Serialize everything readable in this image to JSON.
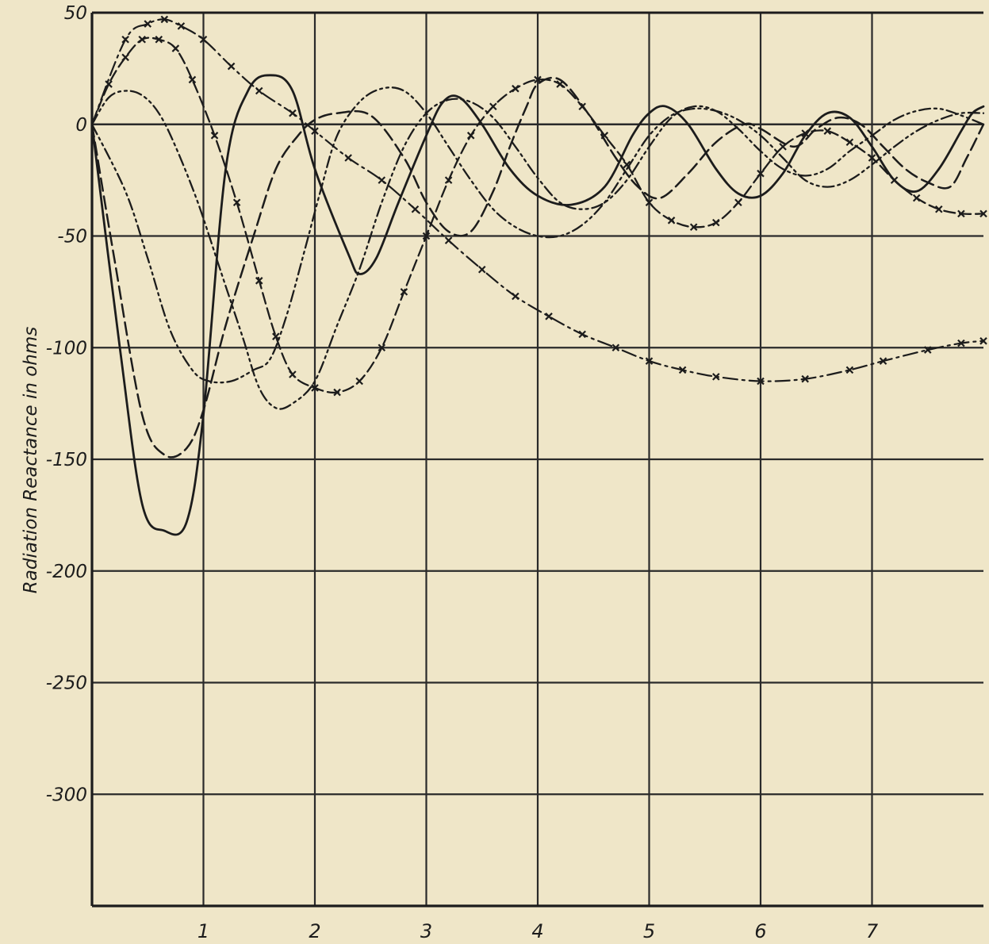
{
  "chart_data": {
    "type": "line",
    "title": "",
    "xlabel": "",
    "ylabel": "Radiation Reactance in ohms",
    "xlim": [
      0,
      8
    ],
    "ylim": [
      -350,
      50
    ],
    "xticks": [
      "1",
      "2",
      "3",
      "4",
      "5",
      "6",
      "7"
    ],
    "yticks": [
      "50",
      "0",
      "-50",
      "-100",
      "-150",
      "-200",
      "-250",
      "-300"
    ],
    "ytick_values": [
      50,
      0,
      -50,
      -100,
      -150,
      -200,
      -250,
      -300
    ],
    "grid": true,
    "legend": "none",
    "series": [
      {
        "style": "solid",
        "points": [
          [
            0,
            0
          ],
          [
            0.25,
            -100
          ],
          [
            0.45,
            -170
          ],
          [
            0.65,
            -182
          ],
          [
            0.85,
            -178
          ],
          [
            1.0,
            -130
          ],
          [
            1.2,
            -20
          ],
          [
            1.4,
            15
          ],
          [
            1.6,
            22
          ],
          [
            1.8,
            15
          ],
          [
            2.0,
            -20
          ],
          [
            2.3,
            -58
          ],
          [
            2.4,
            -67
          ],
          [
            2.55,
            -60
          ],
          [
            2.75,
            -35
          ],
          [
            3.0,
            -5
          ],
          [
            3.15,
            10
          ],
          [
            3.3,
            12
          ],
          [
            3.5,
            0
          ],
          [
            3.75,
            -20
          ],
          [
            4.0,
            -32
          ],
          [
            4.3,
            -36
          ],
          [
            4.6,
            -28
          ],
          [
            4.85,
            -5
          ],
          [
            5.0,
            5
          ],
          [
            5.15,
            8
          ],
          [
            5.35,
            0
          ],
          [
            5.6,
            -20
          ],
          [
            5.8,
            -31
          ],
          [
            6.0,
            -32
          ],
          [
            6.2,
            -22
          ],
          [
            6.4,
            -5
          ],
          [
            6.6,
            5
          ],
          [
            6.8,
            3
          ],
          [
            7.0,
            -10
          ],
          [
            7.2,
            -25
          ],
          [
            7.4,
            -30
          ],
          [
            7.6,
            -20
          ],
          [
            7.8,
            -3
          ],
          [
            7.9,
            5
          ],
          [
            8.0,
            8
          ]
        ]
      },
      {
        "style": "dashed",
        "points": [
          [
            0,
            0
          ],
          [
            0.2,
            -60
          ],
          [
            0.45,
            -130
          ],
          [
            0.65,
            -148
          ],
          [
            0.85,
            -145
          ],
          [
            1.0,
            -128
          ],
          [
            1.2,
            -90
          ],
          [
            1.45,
            -50
          ],
          [
            1.65,
            -20
          ],
          [
            1.85,
            -5
          ],
          [
            2.0,
            2
          ],
          [
            2.2,
            5
          ],
          [
            2.5,
            4
          ],
          [
            2.8,
            -15
          ],
          [
            3.0,
            -35
          ],
          [
            3.2,
            -48
          ],
          [
            3.4,
            -48
          ],
          [
            3.6,
            -30
          ],
          [
            3.75,
            -10
          ],
          [
            3.9,
            8
          ],
          [
            4.0,
            18
          ],
          [
            4.2,
            20
          ],
          [
            4.45,
            5
          ],
          [
            4.7,
            -15
          ],
          [
            4.9,
            -28
          ],
          [
            5.1,
            -33
          ],
          [
            5.35,
            -22
          ],
          [
            5.6,
            -8
          ],
          [
            5.85,
            0
          ],
          [
            6.0,
            -2
          ],
          [
            6.3,
            -10
          ],
          [
            6.5,
            -2
          ],
          [
            6.7,
            3
          ],
          [
            6.9,
            0
          ],
          [
            7.1,
            -10
          ],
          [
            7.3,
            -20
          ],
          [
            7.5,
            -26
          ],
          [
            7.7,
            -28
          ],
          [
            7.85,
            -15
          ],
          [
            8.0,
            0
          ]
        ]
      },
      {
        "style": "dash-dot-x",
        "points": [
          [
            0,
            0
          ],
          [
            0.3,
            38
          ],
          [
            0.5,
            45
          ],
          [
            0.65,
            47
          ],
          [
            0.8,
            44
          ],
          [
            1.0,
            38
          ],
          [
            1.25,
            26
          ],
          [
            1.5,
            15
          ],
          [
            1.8,
            5
          ],
          [
            2.0,
            -3
          ],
          [
            2.3,
            -15
          ],
          [
            2.6,
            -25
          ],
          [
            2.9,
            -38
          ],
          [
            3.2,
            -52
          ],
          [
            3.5,
            -65
          ],
          [
            3.8,
            -77
          ],
          [
            4.1,
            -86
          ],
          [
            4.4,
            -94
          ],
          [
            4.7,
            -100
          ],
          [
            5.0,
            -106
          ],
          [
            5.3,
            -110
          ],
          [
            5.6,
            -113
          ],
          [
            6.0,
            -115
          ],
          [
            6.4,
            -114
          ],
          [
            6.8,
            -110
          ],
          [
            7.1,
            -106
          ],
          [
            7.5,
            -101
          ],
          [
            7.8,
            -98
          ],
          [
            8.0,
            -97
          ]
        ]
      },
      {
        "style": "dash-x",
        "points": [
          [
            0,
            0
          ],
          [
            0.15,
            18
          ],
          [
            0.3,
            30
          ],
          [
            0.45,
            38
          ],
          [
            0.6,
            38
          ],
          [
            0.75,
            34
          ],
          [
            0.9,
            20
          ],
          [
            1.1,
            -5
          ],
          [
            1.3,
            -35
          ],
          [
            1.5,
            -70
          ],
          [
            1.65,
            -95
          ],
          [
            1.8,
            -112
          ],
          [
            2.0,
            -118
          ],
          [
            2.2,
            -120
          ],
          [
            2.4,
            -115
          ],
          [
            2.6,
            -100
          ],
          [
            2.8,
            -75
          ],
          [
            3.0,
            -50
          ],
          [
            3.2,
            -25
          ],
          [
            3.4,
            -5
          ],
          [
            3.6,
            8
          ],
          [
            3.8,
            16
          ],
          [
            4.0,
            20
          ],
          [
            4.2,
            18
          ],
          [
            4.4,
            8
          ],
          [
            4.6,
            -5
          ],
          [
            4.8,
            -18
          ],
          [
            5.0,
            -35
          ],
          [
            5.2,
            -43
          ],
          [
            5.4,
            -46
          ],
          [
            5.6,
            -44
          ],
          [
            5.8,
            -35
          ],
          [
            6.0,
            -22
          ],
          [
            6.2,
            -10
          ],
          [
            6.4,
            -4
          ],
          [
            6.6,
            -3
          ],
          [
            6.8,
            -8
          ],
          [
            7.0,
            -15
          ],
          [
            7.2,
            -25
          ],
          [
            7.4,
            -33
          ],
          [
            7.6,
            -38
          ],
          [
            7.8,
            -40
          ],
          [
            8.0,
            -40
          ]
        ]
      },
      {
        "style": "dash-dot-dot",
        "points": [
          [
            0,
            0
          ],
          [
            0.3,
            -30
          ],
          [
            0.5,
            -60
          ],
          [
            0.7,
            -92
          ],
          [
            0.9,
            -110
          ],
          [
            1.05,
            -115
          ],
          [
            1.25,
            -115
          ],
          [
            1.45,
            -110
          ],
          [
            1.6,
            -105
          ],
          [
            1.75,
            -85
          ],
          [
            1.9,
            -58
          ],
          [
            2.05,
            -30
          ],
          [
            2.2,
            -5
          ],
          [
            2.4,
            10
          ],
          [
            2.6,
            16
          ],
          [
            2.8,
            15
          ],
          [
            3.0,
            5
          ],
          [
            3.2,
            -10
          ],
          [
            3.4,
            -25
          ],
          [
            3.6,
            -38
          ],
          [
            3.8,
            -46
          ],
          [
            4.0,
            -50
          ],
          [
            4.2,
            -50
          ],
          [
            4.4,
            -45
          ],
          [
            4.6,
            -35
          ],
          [
            4.8,
            -20
          ],
          [
            5.0,
            -5
          ],
          [
            5.2,
            4
          ],
          [
            5.4,
            7
          ],
          [
            5.6,
            6
          ],
          [
            5.8,
            2
          ],
          [
            6.0,
            -5
          ],
          [
            6.2,
            -15
          ],
          [
            6.4,
            -25
          ],
          [
            6.6,
            -28
          ],
          [
            6.8,
            -25
          ],
          [
            7.0,
            -18
          ],
          [
            7.2,
            -10
          ],
          [
            7.4,
            -3
          ],
          [
            7.6,
            2
          ],
          [
            7.8,
            5
          ],
          [
            8.0,
            5
          ]
        ]
      },
      {
        "style": "dash-dot-dot",
        "points": [
          [
            0,
            0
          ],
          [
            0.15,
            12
          ],
          [
            0.3,
            15
          ],
          [
            0.45,
            13
          ],
          [
            0.6,
            5
          ],
          [
            0.75,
            -10
          ],
          [
            0.95,
            -35
          ],
          [
            1.15,
            -65
          ],
          [
            1.35,
            -95
          ],
          [
            1.5,
            -118
          ],
          [
            1.65,
            -127
          ],
          [
            1.8,
            -125
          ],
          [
            2.0,
            -115
          ],
          [
            2.2,
            -90
          ],
          [
            2.4,
            -65
          ],
          [
            2.6,
            -35
          ],
          [
            2.8,
            -10
          ],
          [
            3.0,
            5
          ],
          [
            3.2,
            11
          ],
          [
            3.4,
            10
          ],
          [
            3.6,
            3
          ],
          [
            3.8,
            -10
          ],
          [
            4.0,
            -24
          ],
          [
            4.2,
            -35
          ],
          [
            4.4,
            -38
          ],
          [
            4.6,
            -35
          ],
          [
            4.8,
            -25
          ],
          [
            5.0,
            -10
          ],
          [
            5.2,
            3
          ],
          [
            5.4,
            8
          ],
          [
            5.6,
            6
          ],
          [
            5.8,
            -2
          ],
          [
            6.0,
            -12
          ],
          [
            6.2,
            -20
          ],
          [
            6.4,
            -23
          ],
          [
            6.6,
            -20
          ],
          [
            6.8,
            -12
          ],
          [
            7.0,
            -5
          ],
          [
            7.2,
            2
          ],
          [
            7.4,
            6
          ],
          [
            7.6,
            7
          ],
          [
            7.8,
            4
          ],
          [
            8.0,
            0
          ]
        ]
      }
    ]
  },
  "colors": {
    "paper": "#efe6c8",
    "ink": "#1c1c1c",
    "grid": "#2a2a2a"
  }
}
